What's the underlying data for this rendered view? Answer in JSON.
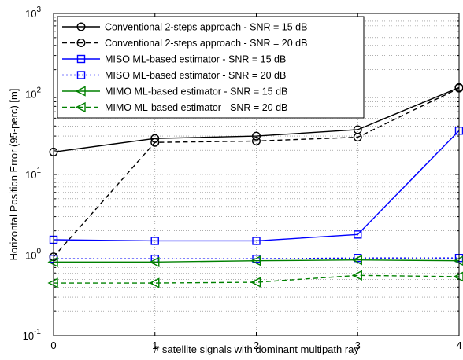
{
  "chart_data": {
    "type": "line",
    "title": "",
    "xlabel": "# satellite signals with dominant multipath ray",
    "ylabel": "Horizontal Position Error (95-perc) [m]",
    "x": [
      0,
      1,
      2,
      3,
      4
    ],
    "x_tick_labels": [
      "0",
      "1",
      "2",
      "3",
      "4"
    ],
    "xlim": [
      0,
      4
    ],
    "ylim": [
      0.1,
      1000
    ],
    "yscale": "log",
    "y_tick_labels": [
      {
        "base": "10",
        "exp": "-1"
      },
      {
        "base": "10",
        "exp": "0"
      },
      {
        "base": "10",
        "exp": "1"
      },
      {
        "base": "10",
        "exp": "2"
      },
      {
        "base": "10",
        "exp": "3"
      }
    ],
    "grid": true,
    "legend_position": "top-left",
    "series": [
      {
        "name": "Conventional 2-steps approach - SNR = 15 dB",
        "values": [
          19,
          28,
          30,
          36,
          120
        ],
        "color": "#000000",
        "dash": "solid",
        "marker": "circle"
      },
      {
        "name": "Conventional 2-steps approach - SNR = 20 dB",
        "values": [
          0.95,
          25,
          26,
          29,
          118
        ],
        "color": "#000000",
        "dash": "dashed",
        "marker": "circle"
      },
      {
        "name": "MISO ML-based estimator - SNR = 15 dB",
        "values": [
          1.55,
          1.5,
          1.5,
          1.8,
          35
        ],
        "color": "#0000ff",
        "dash": "solid",
        "marker": "square"
      },
      {
        "name": "MISO ML-based estimator - SNR = 20 dB",
        "values": [
          0.9,
          0.9,
          0.9,
          0.92,
          0.92
        ],
        "color": "#0000ff",
        "dash": "dotted",
        "marker": "square"
      },
      {
        "name": "MIMO ML-based estimator - SNR = 15 dB",
        "values": [
          0.82,
          0.82,
          0.85,
          0.87,
          0.85
        ],
        "color": "#008000",
        "dash": "solid",
        "marker": "triangle-left"
      },
      {
        "name": "MIMO ML-based estimator - SNR = 20 dB",
        "values": [
          0.45,
          0.45,
          0.46,
          0.56,
          0.54
        ],
        "color": "#008000",
        "dash": "dashed",
        "marker": "triangle-left"
      }
    ]
  }
}
